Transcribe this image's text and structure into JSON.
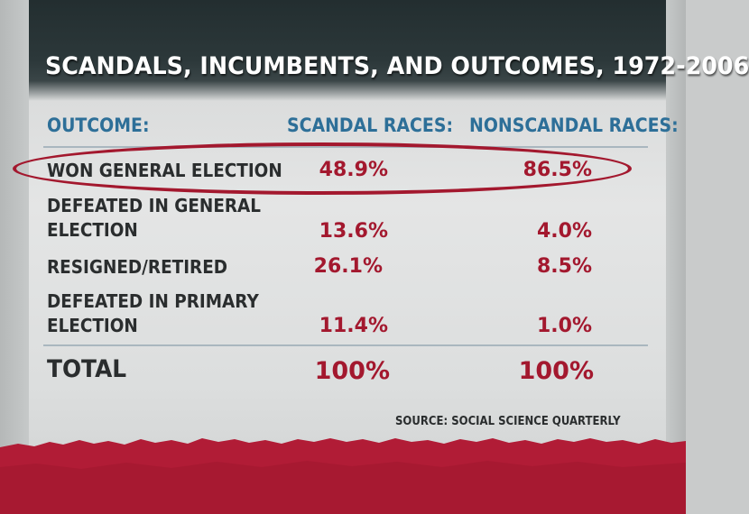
{
  "title": "SCANDALS, INCUMBENTS, AND OUTCOMES, 1972-2006",
  "columns": {
    "outcome": "OUTCOME:",
    "scandal": "SCANDAL RACES:",
    "nonscandal": "NONSCANDAL RACES:"
  },
  "rows": [
    {
      "label_line1": "WON GENERAL ELECTION",
      "label_line2": "",
      "scandal": "48.9%",
      "nonscandal": "86.5%",
      "highlighted": true
    },
    {
      "label_line1": "DEFEATED IN GENERAL",
      "label_line2": "ELECTION",
      "scandal": "13.6%",
      "nonscandal": "4.0%",
      "highlighted": false
    },
    {
      "label_line1": "RESIGNED/RETIRED",
      "label_line2": "",
      "scandal": "26.1%",
      "nonscandal": "8.5%",
      "highlighted": false
    },
    {
      "label_line1": "DEFEATED IN PRIMARY",
      "label_line2": "ELECTION",
      "scandal": "11.4%",
      "nonscandal": "1.0%",
      "highlighted": false
    }
  ],
  "total": {
    "label": "TOTAL",
    "scandal": "100%",
    "nonscandal": "100%"
  },
  "source": "SOURCE:  SOCIAL SCIENCE QUARTERLY",
  "colors": {
    "accent_red": "#a3182e",
    "header_blue": "#2d6f98",
    "dark_band": "#2c383a",
    "torn_red": "#b11c36"
  },
  "chart_data": {
    "type": "table",
    "title": "SCANDALS, INCUMBENTS, AND OUTCOMES, 1972-2006",
    "columns": [
      "OUTCOME:",
      "SCANDAL RACES:",
      "NONSCANDAL RACES:"
    ],
    "rows": [
      [
        "WON GENERAL ELECTION",
        "48.9%",
        "86.5%"
      ],
      [
        "DEFEATED IN GENERAL ELECTION",
        "13.6%",
        "4.0%"
      ],
      [
        "RESIGNED/RETIRED",
        "26.1%",
        "8.5%"
      ],
      [
        "DEFEATED IN PRIMARY ELECTION",
        "11.4%",
        "1.0%"
      ],
      [
        "TOTAL",
        "100%",
        "100%"
      ]
    ],
    "series": [
      {
        "name": "SCANDAL RACES:",
        "values": [
          48.9,
          13.6,
          26.1,
          11.4
        ]
      },
      {
        "name": "NONSCANDAL RACES:",
        "values": [
          86.5,
          4.0,
          8.5,
          1.0
        ]
      }
    ],
    "annotations": [
      "SOURCE:  SOCIAL SCIENCE QUARTERLY"
    ]
  }
}
